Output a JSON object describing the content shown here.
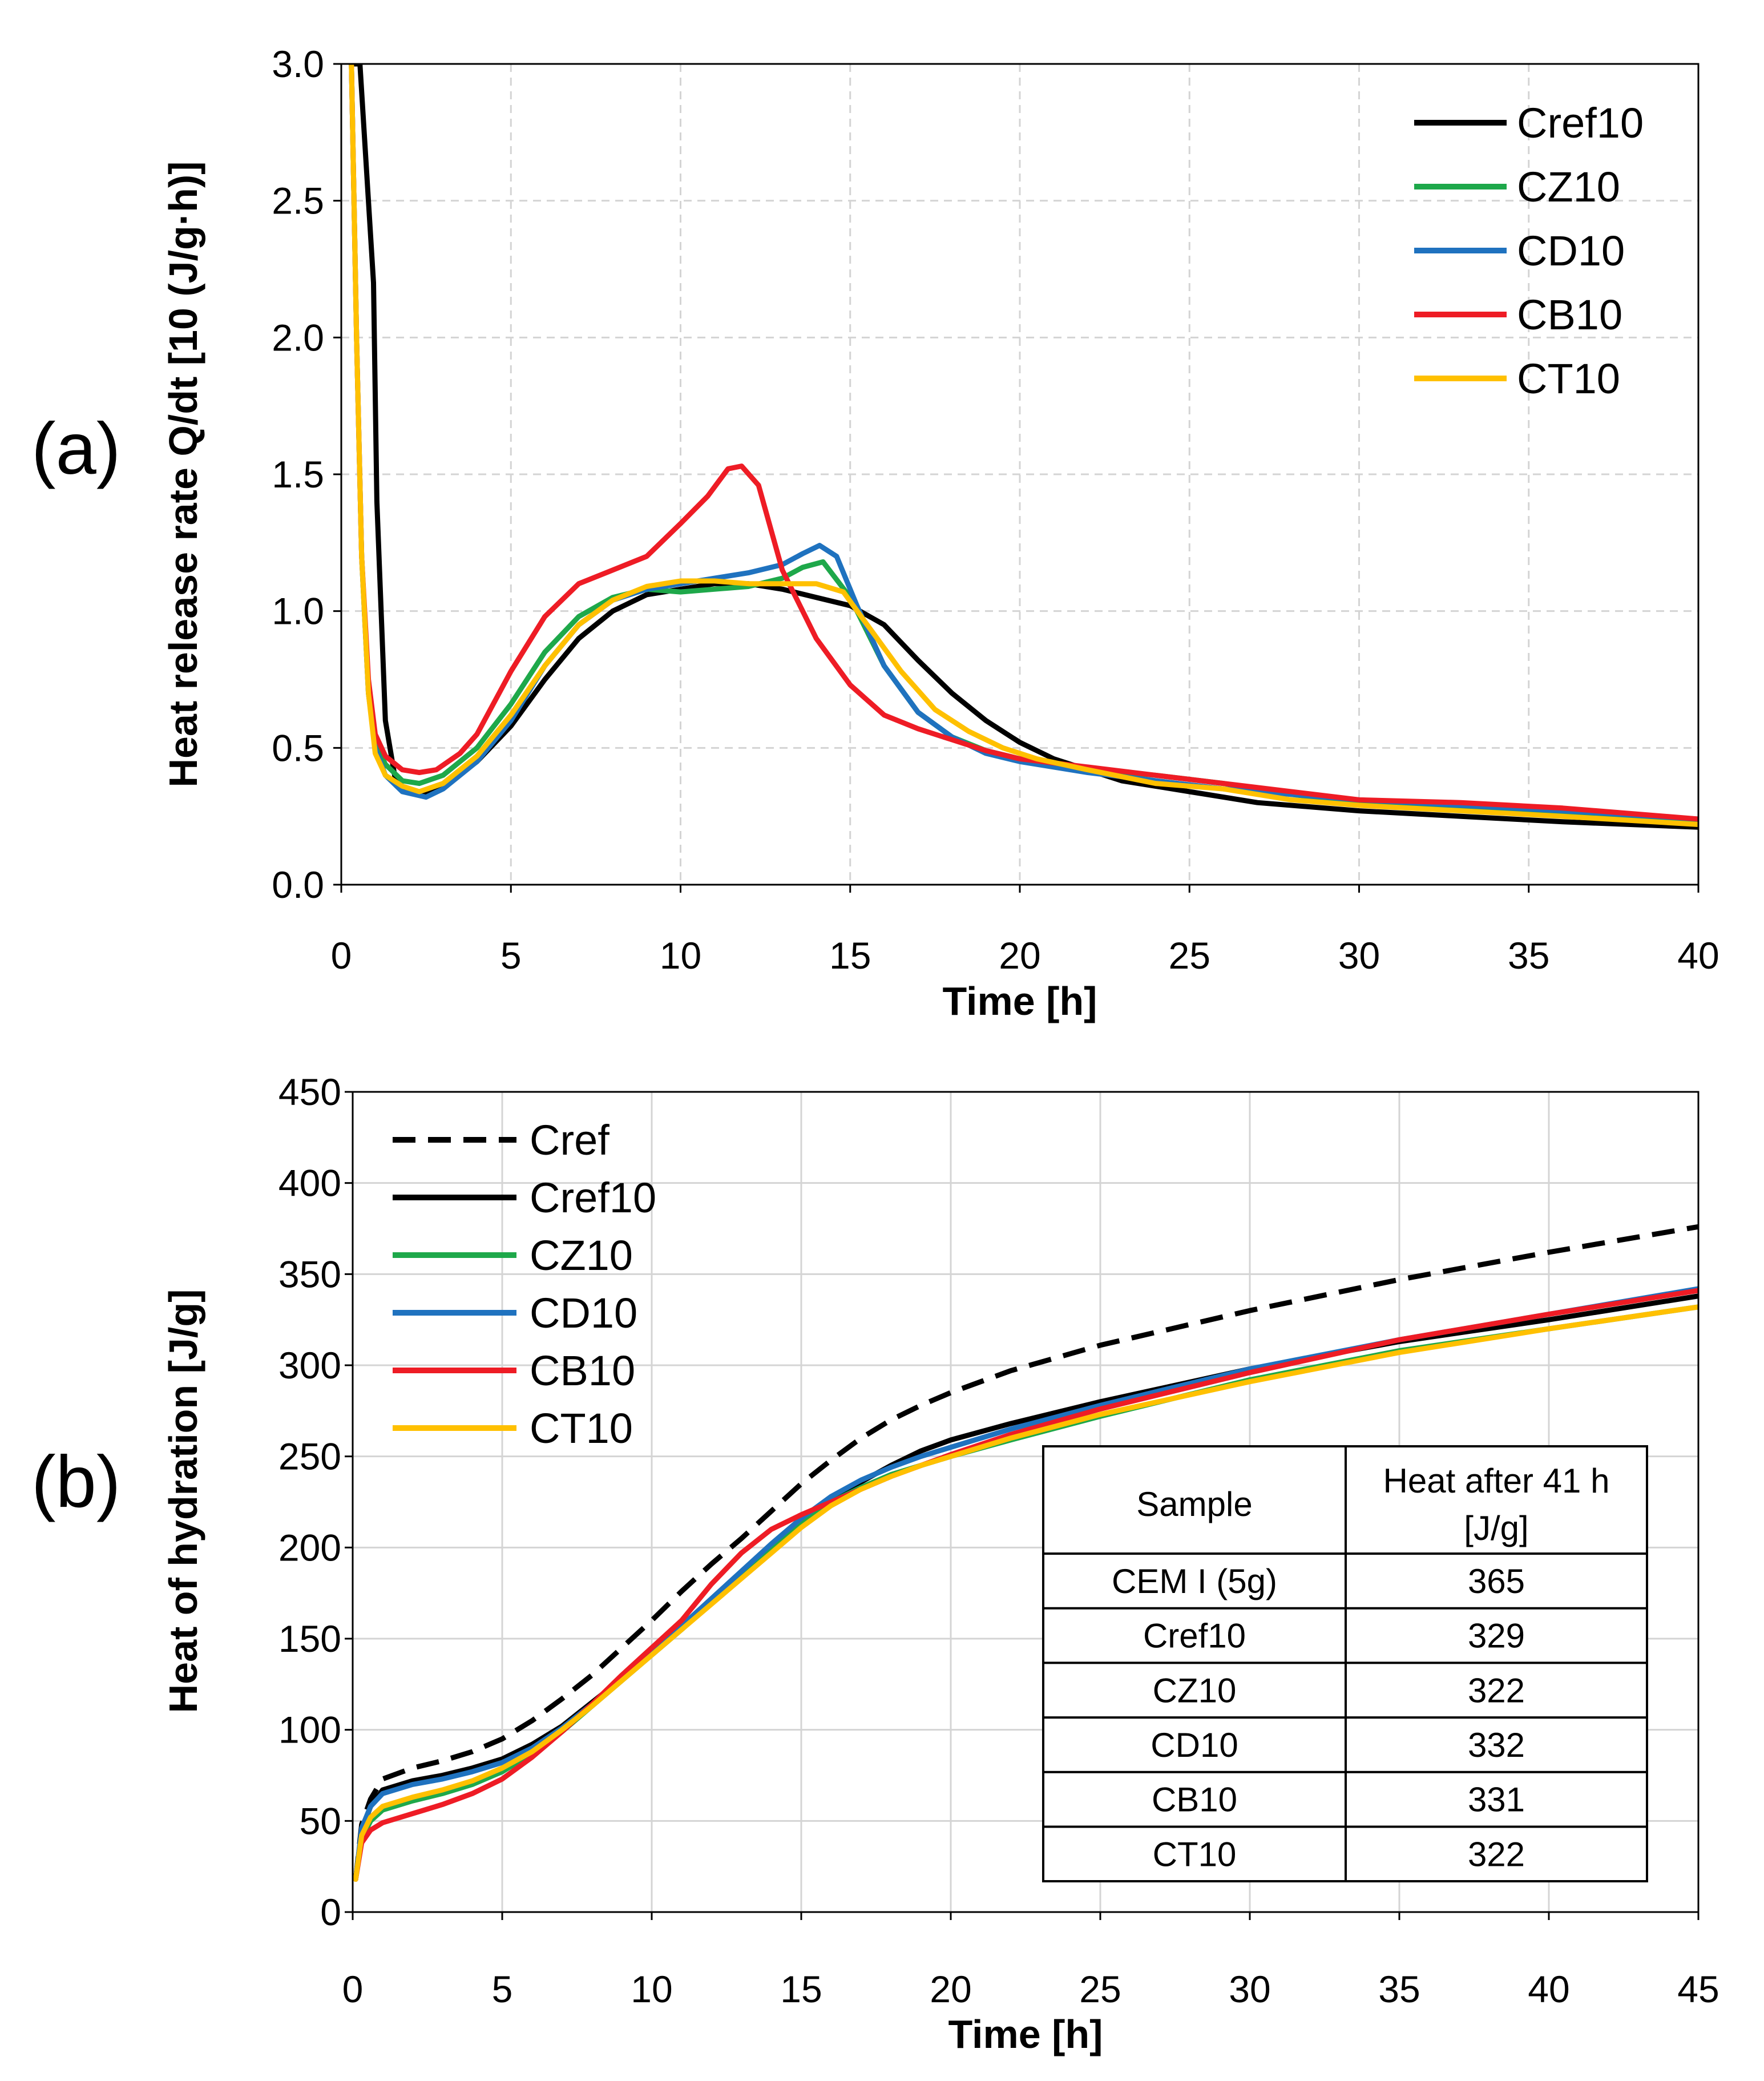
{
  "chart_data": [
    {
      "type": "line",
      "panel_label": "(a)",
      "title": "",
      "xlabel": "Time [h]",
      "ylabel": "Heat release rate Q/dt [10 (J/g·h)]",
      "xlim": [
        0,
        40
      ],
      "ylim": [
        0,
        3.0
      ],
      "xticks": [
        "0",
        "5",
        "10",
        "15",
        "20",
        "25",
        "30",
        "35",
        "40"
      ],
      "yticks": [
        "0.0",
        "0.5",
        "1.0",
        "1.5",
        "2.0",
        "2.5",
        "3.0"
      ],
      "grid": "dashed",
      "legend_position": "top-right",
      "series": [
        {
          "name": "Cref10",
          "color": "#000000",
          "dash": "solid",
          "x": [
            0.35,
            0.55,
            0.75,
            0.95,
            1.05,
            1.3,
            1.6,
            2.0,
            2.5,
            3,
            4,
            5,
            6,
            7,
            8,
            9,
            10,
            11,
            12,
            13,
            14,
            15,
            16,
            17,
            18,
            19,
            20,
            21,
            22,
            23,
            24,
            25,
            27,
            30,
            33,
            36,
            40
          ],
          "y": [
            3.0,
            3.0,
            2.6,
            2.2,
            1.4,
            0.6,
            0.38,
            0.34,
            0.33,
            0.36,
            0.45,
            0.58,
            0.75,
            0.9,
            1.0,
            1.06,
            1.08,
            1.1,
            1.1,
            1.08,
            1.05,
            1.02,
            0.95,
            0.82,
            0.7,
            0.6,
            0.52,
            0.46,
            0.42,
            0.38,
            0.36,
            0.34,
            0.3,
            0.27,
            0.25,
            0.23,
            0.21
          ]
        },
        {
          "name": "CZ10",
          "color": "#1EA84A",
          "dash": "solid",
          "x": [
            0.3,
            0.45,
            0.6,
            0.8,
            1.0,
            1.3,
            1.8,
            2.3,
            3,
            4,
            5,
            6,
            7,
            8,
            9,
            10,
            11,
            12,
            13,
            13.6,
            14.2,
            15,
            16,
            17,
            18,
            19,
            20,
            22,
            24,
            26,
            28,
            30,
            33,
            36,
            40
          ],
          "y": [
            3.0,
            2.0,
            1.2,
            0.7,
            0.52,
            0.44,
            0.38,
            0.37,
            0.4,
            0.5,
            0.66,
            0.85,
            0.98,
            1.05,
            1.08,
            1.07,
            1.08,
            1.09,
            1.12,
            1.16,
            1.18,
            1.05,
            0.8,
            0.63,
            0.54,
            0.49,
            0.46,
            0.42,
            0.4,
            0.37,
            0.33,
            0.3,
            0.28,
            0.26,
            0.23
          ]
        },
        {
          "name": "CD10",
          "color": "#1F72BF",
          "dash": "solid",
          "x": [
            0.3,
            0.45,
            0.6,
            0.8,
            1.0,
            1.3,
            1.8,
            2.5,
            3,
            4,
            5,
            6,
            7,
            8,
            9,
            10,
            11,
            12,
            13,
            13.6,
            14.1,
            14.6,
            15.2,
            16,
            17,
            18,
            19,
            20,
            22,
            24,
            26,
            28,
            30,
            33,
            36,
            40
          ],
          "y": [
            3.0,
            2.0,
            1.2,
            0.7,
            0.5,
            0.4,
            0.34,
            0.32,
            0.35,
            0.45,
            0.6,
            0.8,
            0.95,
            1.04,
            1.08,
            1.1,
            1.12,
            1.14,
            1.17,
            1.21,
            1.24,
            1.2,
            1.02,
            0.8,
            0.63,
            0.54,
            0.48,
            0.45,
            0.41,
            0.38,
            0.35,
            0.33,
            0.31,
            0.29,
            0.27,
            0.24
          ]
        },
        {
          "name": "CB10",
          "color": "#EE1C25",
          "dash": "solid",
          "x": [
            0.3,
            0.45,
            0.6,
            0.8,
            1.0,
            1.3,
            1.8,
            2.3,
            2.8,
            3.5,
            4,
            5,
            6,
            7,
            8,
            9,
            10,
            10.8,
            11.4,
            11.8,
            12.3,
            13,
            14,
            15,
            16,
            17,
            18,
            19,
            20,
            22,
            24,
            26,
            28,
            30,
            33,
            36,
            40
          ],
          "y": [
            3.0,
            2.0,
            1.2,
            0.75,
            0.55,
            0.47,
            0.42,
            0.41,
            0.42,
            0.48,
            0.55,
            0.78,
            0.98,
            1.1,
            1.15,
            1.2,
            1.32,
            1.42,
            1.52,
            1.53,
            1.46,
            1.15,
            0.9,
            0.73,
            0.62,
            0.57,
            0.53,
            0.49,
            0.46,
            0.43,
            0.4,
            0.37,
            0.34,
            0.31,
            0.3,
            0.28,
            0.24
          ]
        },
        {
          "name": "CT10",
          "color": "#FFC000",
          "dash": "solid",
          "x": [
            0.3,
            0.45,
            0.6,
            0.8,
            1.0,
            1.3,
            1.8,
            2.3,
            3,
            4,
            5,
            6,
            7,
            8,
            9,
            10,
            11,
            12,
            13,
            14,
            14.8,
            15.5,
            16.5,
            17.5,
            18.5,
            19.5,
            20.5,
            22,
            24,
            26,
            28,
            30,
            33,
            36,
            40
          ],
          "y": [
            3.0,
            2.0,
            1.2,
            0.7,
            0.48,
            0.4,
            0.36,
            0.34,
            0.37,
            0.47,
            0.62,
            0.8,
            0.95,
            1.04,
            1.09,
            1.11,
            1.11,
            1.1,
            1.1,
            1.1,
            1.07,
            0.95,
            0.78,
            0.64,
            0.56,
            0.5,
            0.46,
            0.42,
            0.37,
            0.35,
            0.31,
            0.29,
            0.27,
            0.25,
            0.22
          ]
        }
      ]
    },
    {
      "type": "line",
      "panel_label": "(b)",
      "title": "",
      "xlabel": "Time [h]",
      "ylabel": "Heat of hydration [J/g]",
      "xlim": [
        0,
        45
      ],
      "ylim": [
        0,
        450
      ],
      "xticks": [
        "0",
        "5",
        "10",
        "15",
        "20",
        "25",
        "30",
        "35",
        "40",
        "45"
      ],
      "yticks": [
        "0",
        "50",
        "100",
        "150",
        "200",
        "250",
        "300",
        "350",
        "400",
        "450"
      ],
      "grid": "solid",
      "legend_position": "top-left",
      "series": [
        {
          "name": "Cref",
          "color": "#000000",
          "dash": "dashed",
          "x": [
            0.1,
            0.3,
            0.6,
            1,
            2,
            3,
            4,
            5,
            6,
            7,
            8,
            9,
            10,
            11,
            12,
            13,
            14,
            15,
            16,
            17,
            18,
            19,
            20,
            22,
            25,
            30,
            35,
            40,
            45
          ],
          "y": [
            18,
            48,
            62,
            73,
            79,
            83,
            88,
            95,
            105,
            117,
            130,
            145,
            160,
            176,
            191,
            205,
            220,
            235,
            248,
            260,
            270,
            278,
            285,
            297,
            311,
            330,
            347,
            362,
            376
          ]
        },
        {
          "name": "Cref10",
          "color": "#000000",
          "dash": "solid",
          "x": [
            0.1,
            0.3,
            0.6,
            1,
            2,
            3,
            4,
            5,
            6,
            7,
            8,
            9,
            10,
            11,
            12,
            13,
            14,
            15,
            16,
            17,
            18,
            19,
            20,
            22,
            25,
            30,
            35,
            40,
            45
          ],
          "y": [
            18,
            45,
            58,
            67,
            72,
            75,
            79,
            84,
            92,
            102,
            115,
            128,
            142,
            156,
            170,
            184,
            198,
            212,
            225,
            236,
            245,
            253,
            259,
            268,
            280,
            298,
            313,
            325,
            338
          ]
        },
        {
          "name": "CZ10",
          "color": "#1EA84A",
          "dash": "solid",
          "x": [
            0.1,
            0.3,
            0.6,
            1,
            2,
            3,
            4,
            5,
            6,
            7,
            8,
            9,
            10,
            11,
            12,
            13,
            14,
            15,
            16,
            17,
            18,
            19,
            20,
            22,
            25,
            30,
            35,
            40,
            45
          ],
          "y": [
            18,
            40,
            50,
            56,
            61,
            65,
            70,
            77,
            87,
            99,
            113,
            127,
            141,
            155,
            170,
            185,
            200,
            213,
            225,
            233,
            240,
            245,
            250,
            259,
            272,
            292,
            308,
            320,
            332
          ]
        },
        {
          "name": "CD10",
          "color": "#1F72BF",
          "dash": "solid",
          "x": [
            0.1,
            0.3,
            0.6,
            1,
            2,
            3,
            4,
            5,
            6,
            7,
            8,
            9,
            10,
            11,
            12,
            13,
            14,
            15,
            16,
            17,
            18,
            19,
            20,
            22,
            25,
            30,
            35,
            40,
            45
          ],
          "y": [
            18,
            46,
            58,
            65,
            70,
            73,
            77,
            82,
            90,
            101,
            114,
            128,
            142,
            157,
            172,
            187,
            202,
            216,
            228,
            237,
            244,
            250,
            255,
            265,
            278,
            298,
            314,
            328,
            342
          ]
        },
        {
          "name": "CB10",
          "color": "#EE1C25",
          "dash": "solid",
          "x": [
            0.1,
            0.3,
            0.6,
            1,
            2,
            3,
            4,
            5,
            6,
            7,
            8,
            9,
            10,
            11,
            12,
            13,
            14,
            15,
            16,
            17,
            18,
            19,
            20,
            22,
            25,
            30,
            35,
            40,
            45
          ],
          "y": [
            18,
            38,
            45,
            49,
            54,
            59,
            65,
            73,
            85,
            99,
            114,
            130,
            145,
            160,
            180,
            197,
            210,
            218,
            225,
            232,
            239,
            245,
            251,
            262,
            276,
            296,
            314,
            328,
            341
          ]
        },
        {
          "name": "CT10",
          "color": "#FFC000",
          "dash": "solid",
          "x": [
            0.1,
            0.3,
            0.6,
            1,
            2,
            3,
            4,
            5,
            6,
            7,
            8,
            9,
            10,
            11,
            12,
            13,
            14,
            15,
            16,
            17,
            18,
            19,
            20,
            22,
            25,
            30,
            35,
            40,
            45
          ],
          "y": [
            18,
            42,
            52,
            58,
            63,
            67,
            72,
            79,
            88,
            100,
            113,
            127,
            141,
            155,
            169,
            183,
            197,
            211,
            223,
            232,
            239,
            245,
            250,
            260,
            273,
            291,
            307,
            320,
            332
          ]
        }
      ],
      "table": {
        "headers": [
          "Sample",
          "Heat after 41 h",
          "[J/g]"
        ],
        "rows": [
          [
            "CEM I (5g)",
            "365"
          ],
          [
            "Cref10",
            "329"
          ],
          [
            "CZ10",
            "322"
          ],
          [
            "CD10",
            "332"
          ],
          [
            "CB10",
            "331"
          ],
          [
            "CT10",
            "322"
          ]
        ]
      }
    }
  ]
}
